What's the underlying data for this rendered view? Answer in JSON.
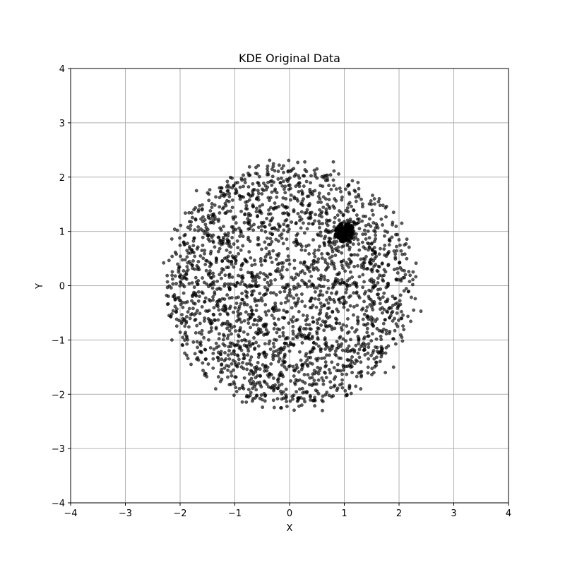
{
  "chart_data": {
    "type": "scatter",
    "title": "KDE Original Data",
    "xlabel": "X",
    "ylabel": "Y",
    "xlim": [
      -4,
      4
    ],
    "ylim": [
      -4,
      4
    ],
    "xticks": [
      -4,
      -3,
      -2,
      -1,
      0,
      1,
      2,
      3,
      4
    ],
    "yticks": [
      -4,
      -3,
      -2,
      -1,
      0,
      1,
      2,
      3,
      4
    ],
    "xtick_labels": [
      "−4",
      "−3",
      "−2",
      "−1",
      "0",
      "1",
      "2",
      "3",
      "4"
    ],
    "ytick_labels": [
      "−4",
      "−3",
      "−2",
      "−1",
      "0",
      "1",
      "2",
      "3",
      "4"
    ],
    "grid": true,
    "marker_color": "#000000",
    "marker_alpha": 0.65,
    "series": [
      {
        "description_of_distribution": "",
        "points": [
          [
            -2.3,
            0.42
          ],
          [
            -2.1,
            1.04
          ],
          [
            -2.05,
            1.02
          ],
          [
            -2.15,
            -1.0
          ],
          [
            -2.2,
            -0.55
          ],
          [
            -1.8,
            -1.45
          ],
          [
            -1.7,
            1.75
          ],
          [
            -1.05,
            1.98
          ],
          [
            0.15,
            2.27
          ],
          [
            0.8,
            2.28
          ],
          [
            1.9,
            1.35
          ],
          [
            2.05,
            1.15
          ],
          [
            2.1,
            0.75
          ],
          [
            2.25,
            0.02
          ],
          [
            2.4,
            -0.47
          ],
          [
            2.05,
            -0.95
          ],
          [
            1.9,
            -1.5
          ],
          [
            0.6,
            -2.3
          ],
          [
            1.05,
            -2.02
          ],
          [
            -0.15,
            -2.25
          ],
          [
            -0.5,
            -2.1
          ],
          [
            -1.35,
            -1.9
          ],
          [
            -1.55,
            -1.65
          ],
          [
            -0.95,
            1.9
          ],
          [
            -0.4,
            2.2
          ],
          [
            0.5,
            2.15
          ],
          [
            1.25,
            1.9
          ],
          [
            1.55,
            1.6
          ],
          [
            1.75,
            -1.6
          ],
          [
            1.3,
            -1.9
          ],
          [
            -0.75,
            -2.05
          ],
          [
            -1.85,
            0.6
          ],
          [
            -1.95,
            -0.4
          ],
          [
            0.95,
            1.0
          ],
          [
            0.98,
            0.97
          ],
          [
            1.02,
            1.01
          ],
          [
            0.97,
            1.03
          ],
          [
            1.01,
            0.95
          ],
          [
            1.04,
            0.99
          ],
          [
            0.96,
            0.98
          ],
          [
            1.0,
            1.0
          ]
        ]
      }
    ],
    "generated_points": {
      "count": 2400,
      "center": [
        0.0,
        0.0
      ],
      "radius": 2.2,
      "cluster": {
        "center": [
          1.0,
          0.98
        ],
        "radius": 0.18,
        "count": 220
      }
    }
  }
}
